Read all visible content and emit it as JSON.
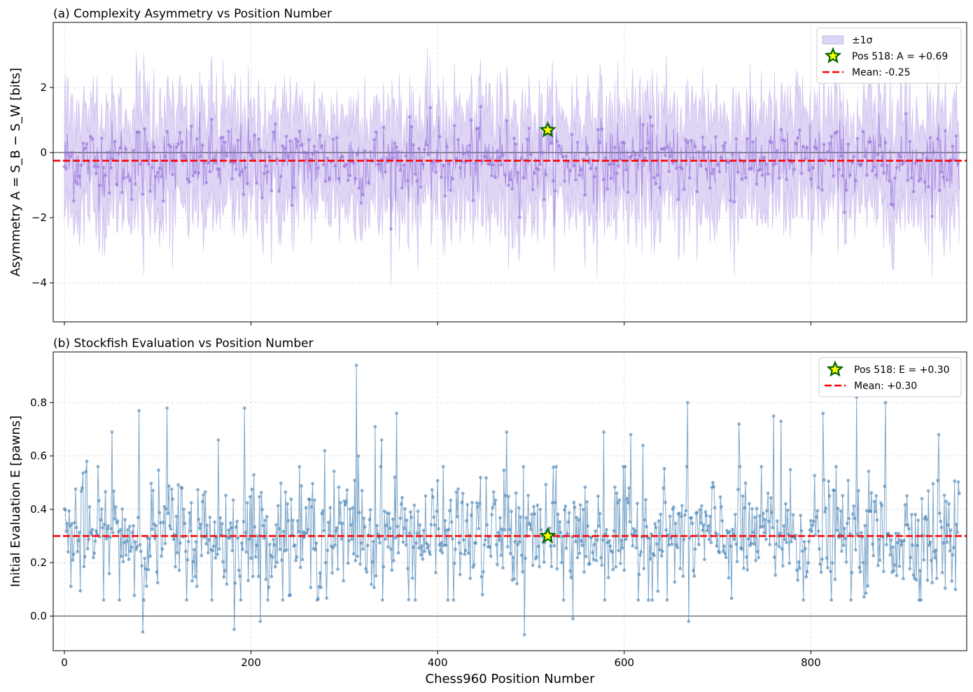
{
  "chart_data": [
    {
      "type": "line",
      "title": "(a) Complexity Asymmetry vs Position Number",
      "ylabel": "Asymmetry A = S_B − S_W [bits]",
      "xlabel": "",
      "xlim": [
        -12,
        967
      ],
      "ylim": [
        -5.2,
        4.0
      ],
      "yticks": [
        -4,
        -2,
        0,
        2
      ],
      "xticks": [
        0,
        200,
        400,
        600,
        800
      ],
      "grid": true,
      "legend_position": "top-right",
      "colors": {
        "series": "#9370db",
        "band": "#9370db",
        "mean": "#ff0000",
        "zero": "#333333",
        "star_fill": "#ffff00",
        "star_edge": "#006400"
      },
      "series": [
        {
          "name": "±1σ",
          "kind": "band",
          "x_range": [
            0,
            959
          ],
          "description_values": "mean per position with ±1σ envelope, sigma ≈ 1.3 bits"
        },
        {
          "name": "",
          "kind": "line",
          "x_range": [
            0,
            959
          ],
          "mean": -0.25,
          "spread_sd": 0.6
        }
      ],
      "highlight": {
        "name": "Pos 518: A = +0.69",
        "x": 518,
        "y": 0.69
      },
      "mean_line": {
        "name": "Mean: -0.25",
        "y": -0.25
      },
      "legend": [
        "±1σ",
        "Pos 518: A = +0.69",
        "Mean: -0.25"
      ],
      "tick_labels": {
        "x": [
          "0",
          "200",
          "400",
          "600",
          "800"
        ],
        "y": [
          "−4",
          "−2",
          "0",
          "2"
        ]
      }
    },
    {
      "type": "line",
      "title": "(b) Stockfish Evaluation vs Position Number",
      "ylabel": "Initial Evaluation E [pawns]",
      "xlabel": "Chess960 Position Number",
      "xlim": [
        -12,
        967
      ],
      "ylim": [
        -0.13,
        0.99
      ],
      "yticks": [
        0.0,
        0.2,
        0.4,
        0.6,
        0.8
      ],
      "xticks": [
        0,
        200,
        400,
        600,
        800
      ],
      "grid": true,
      "legend_position": "top-right",
      "colors": {
        "series": "#4682b4",
        "mean": "#ff0000",
        "zero": "#333333",
        "star_fill": "#ffff00",
        "star_edge": "#006400"
      },
      "series": [
        {
          "name": "",
          "kind": "line",
          "x_range": [
            0,
            959
          ],
          "mean": 0.3,
          "spread_sd": 0.11
        }
      ],
      "spikes": [
        {
          "x": 80,
          "y": 0.77
        },
        {
          "x": 84,
          "y": -0.06
        },
        {
          "x": 110,
          "y": 0.78
        },
        {
          "x": 193,
          "y": 0.78
        },
        {
          "x": 182,
          "y": -0.05
        },
        {
          "x": 210,
          "y": -0.02
        },
        {
          "x": 313,
          "y": 0.94
        },
        {
          "x": 356,
          "y": 0.76
        },
        {
          "x": 493,
          "y": -0.07
        },
        {
          "x": 545,
          "y": -0.01
        },
        {
          "x": 578,
          "y": -0.07
        },
        {
          "x": 668,
          "y": 0.8
        },
        {
          "x": 669,
          "y": -0.02
        },
        {
          "x": 849,
          "y": 0.82
        },
        {
          "x": 880,
          "y": 0.8
        },
        {
          "x": 51,
          "y": 0.69
        },
        {
          "x": 333,
          "y": 0.71
        },
        {
          "x": 474,
          "y": 0.69
        },
        {
          "x": 578,
          "y": 0.69
        },
        {
          "x": 607,
          "y": 0.68
        },
        {
          "x": 760,
          "y": 0.75
        },
        {
          "x": 813,
          "y": 0.76
        },
        {
          "x": 937,
          "y": 0.68
        },
        {
          "x": 165,
          "y": 0.66
        },
        {
          "x": 340,
          "y": 0.66
        },
        {
          "x": 620,
          "y": 0.64
        },
        {
          "x": 315,
          "y": 0.6
        },
        {
          "x": 723,
          "y": 0.72
        },
        {
          "x": 768,
          "y": 0.73
        },
        {
          "x": 24,
          "y": 0.58
        },
        {
          "x": 279,
          "y": 0.62
        }
      ],
      "highlight": {
        "name": "Pos 518: E = +0.30",
        "x": 518,
        "y": 0.3
      },
      "mean_line": {
        "name": "Mean: +0.30",
        "y": 0.3
      },
      "legend": [
        "Pos 518: E = +0.30",
        "Mean: +0.30"
      ],
      "tick_labels": {
        "x": [
          "0",
          "200",
          "400",
          "600",
          "800"
        ],
        "y": [
          "0.0",
          "0.2",
          "0.4",
          "0.6",
          "0.8"
        ]
      }
    }
  ]
}
